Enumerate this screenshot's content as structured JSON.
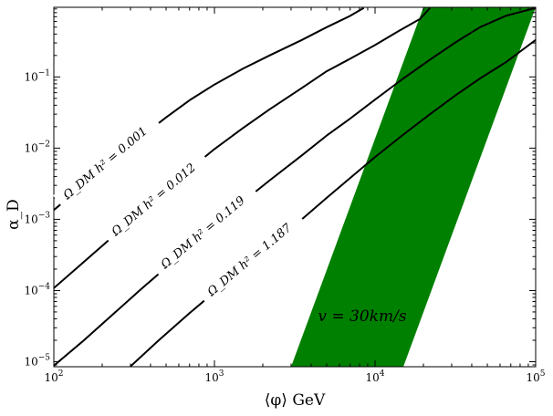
{
  "chart_data": {
    "type": "line",
    "title": "",
    "xlabel": "⟨φ⟩ GeV",
    "ylabel": "α_D",
    "xscale": "log",
    "yscale": "log",
    "xlim": [
      100,
      100000
    ],
    "ylim": [
      8.5e-06,
      0.95
    ],
    "grid": false,
    "x_ticks": [
      {
        "value": 100,
        "mantissa": "10",
        "exp": "2"
      },
      {
        "value": 1000,
        "mantissa": "10",
        "exp": "3"
      },
      {
        "value": 10000,
        "mantissa": "10",
        "exp": "4"
      },
      {
        "value": 100000,
        "mantissa": "10",
        "exp": "5"
      }
    ],
    "y_ticks": [
      {
        "value": 1e-05,
        "mantissa": "10",
        "exp": "−5"
      },
      {
        "value": 0.0001,
        "mantissa": "10",
        "exp": "−4"
      },
      {
        "value": 0.001,
        "mantissa": "10",
        "exp": "−3"
      },
      {
        "value": 0.01,
        "mantissa": "10",
        "exp": "−2"
      },
      {
        "value": 0.1,
        "mantissa": "10",
        "exp": "−1"
      }
    ],
    "series": [
      {
        "name": "Ω_DM h² = 0.001",
        "label": "Ω_DM h² = 0.001",
        "color": "#000000",
        "points": [
          [
            100,
            0.00135
          ],
          [
            150,
            0.0029
          ],
          [
            230,
            0.0065
          ],
          [
            350,
            0.0145
          ],
          [
            500,
            0.027
          ],
          [
            700,
            0.047
          ],
          [
            1000,
            0.078
          ],
          [
            1500,
            0.13
          ],
          [
            2200,
            0.2
          ],
          [
            3500,
            0.33
          ],
          [
            5000,
            0.5
          ],
          [
            7000,
            0.72
          ],
          [
            8500,
            0.93
          ]
        ]
      },
      {
        "name": "Ω_DM h² = 0.012",
        "label": "Ω_DM h² = 0.012",
        "color": "#000000",
        "points": [
          [
            100,
            0.000108
          ],
          [
            150,
            0.00024
          ],
          [
            230,
            0.00056
          ],
          [
            350,
            0.00128
          ],
          [
            500,
            0.0026
          ],
          [
            700,
            0.005
          ],
          [
            1000,
            0.0097
          ],
          [
            1500,
            0.019
          ],
          [
            2200,
            0.035
          ],
          [
            3500,
            0.07
          ],
          [
            5000,
            0.12
          ],
          [
            7000,
            0.18
          ],
          [
            10000,
            0.28
          ],
          [
            14000,
            0.44
          ],
          [
            19000,
            0.65
          ],
          [
            22000,
            0.93
          ]
        ]
      },
      {
        "name": "Ω_DM h² = 0.119",
        "label": "Ω_DM h² = 0.119",
        "color": "#000000",
        "points": [
          [
            100,
            8.8e-06
          ],
          [
            150,
            1.9e-05
          ],
          [
            230,
            4.5e-05
          ],
          [
            350,
            0.000105
          ],
          [
            500,
            0.00021
          ],
          [
            700,
            0.00041
          ],
          [
            1000,
            0.00082
          ],
          [
            1500,
            0.00175
          ],
          [
            2200,
            0.0035
          ],
          [
            3500,
            0.0079
          ],
          [
            5000,
            0.015
          ],
          [
            7000,
            0.026
          ],
          [
            10000,
            0.048
          ],
          [
            15000,
            0.095
          ],
          [
            22000,
            0.175
          ],
          [
            32000,
            0.31
          ],
          [
            45000,
            0.5
          ],
          [
            65000,
            0.72
          ],
          [
            100000,
            0.93
          ]
        ]
      },
      {
        "name": "Ω_DM h² = 1.187",
        "label": "Ω_DM h² = 1.187",
        "color": "#000000",
        "points": [
          [
            300,
            8.6e-06
          ],
          [
            450,
            2e-05
          ],
          [
            700,
            4.8e-05
          ],
          [
            1000,
            9.5e-05
          ],
          [
            1500,
            0.0002
          ],
          [
            2200,
            0.00042
          ],
          [
            3500,
            0.001
          ],
          [
            5000,
            0.002
          ],
          [
            7000,
            0.0038
          ],
          [
            10000,
            0.0075
          ],
          [
            15000,
            0.0155
          ],
          [
            22000,
            0.03
          ],
          [
            32000,
            0.056
          ],
          [
            45000,
            0.095
          ],
          [
            65000,
            0.16
          ],
          [
            100000,
            0.33
          ]
        ]
      }
    ],
    "region": {
      "name": "v = 30km/s",
      "label": "v = 30km/s",
      "color": "#008000",
      "polygon": [
        [
          3000,
          8.5e-06
        ],
        [
          15000,
          8.5e-06
        ],
        [
          100000,
          0.95
        ],
        [
          20000,
          0.95
        ]
      ]
    }
  },
  "labels": {
    "omega1": "Ω_DM h² = 0.001",
    "omega2": "Ω_DM h² = 0.012",
    "omega3": "Ω_DM h² = 0.119",
    "omega4": "Ω_DM h² = 1.187",
    "region": "v = 30km/s"
  }
}
